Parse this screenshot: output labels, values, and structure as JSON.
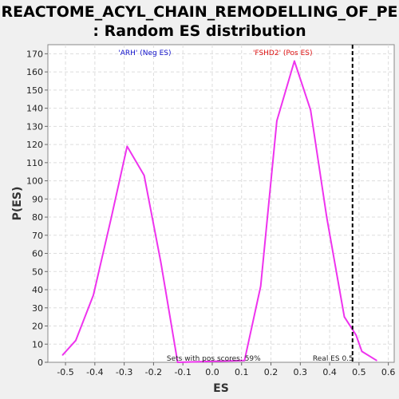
{
  "title_line1": "REACTOME_ACYL_CHAIN_REMODELLING_OF_PE",
  "title_line2": ": Random ES distribution",
  "chart_data": {
    "type": "line",
    "xlabel": "ES",
    "ylabel": "P(ES)",
    "xlim": [
      -0.56,
      0.62
    ],
    "ylim": [
      0,
      175
    ],
    "x_ticks": [
      -0.5,
      -0.4,
      -0.3,
      -0.2,
      -0.1,
      0.0,
      0.1,
      0.2,
      0.3,
      0.4,
      0.5,
      0.6
    ],
    "x_tick_labels": [
      "-0.5",
      "-0.4",
      "-0.3",
      "-0.2",
      "-0.1",
      "0.0",
      "0.1",
      "0.2",
      "0.3",
      "0.4",
      "0.5",
      "0.6"
    ],
    "y_ticks": [
      0,
      10,
      20,
      30,
      40,
      50,
      60,
      70,
      80,
      90,
      100,
      110,
      120,
      130,
      140,
      150,
      160,
      170
    ],
    "grid": true,
    "series": [
      {
        "color": "#ee33ee",
        "x": [
          -0.51,
          -0.465,
          -0.405,
          -0.345,
          -0.29,
          -0.232,
          -0.175,
          -0.118,
          0.11,
          0.165,
          0.22,
          0.28,
          0.335,
          0.39,
          0.45,
          0.49,
          0.51,
          0.56
        ],
        "y": [
          4,
          12,
          37,
          79,
          119,
          103,
          55,
          0,
          1,
          42,
          133,
          166,
          139,
          80,
          25,
          15,
          6,
          1
        ]
      }
    ],
    "annotations": {
      "neg_label": "'ARH' (Neg ES)",
      "neg_color": "#1111cc",
      "pos_label": "'FSHD2' (Pos ES)",
      "pos_color": "#dd1111",
      "sets_pos_text": "Sets with pos scores: 59%",
      "real_es_text": "Real ES 0.5",
      "real_es_value": 0.478
    }
  }
}
